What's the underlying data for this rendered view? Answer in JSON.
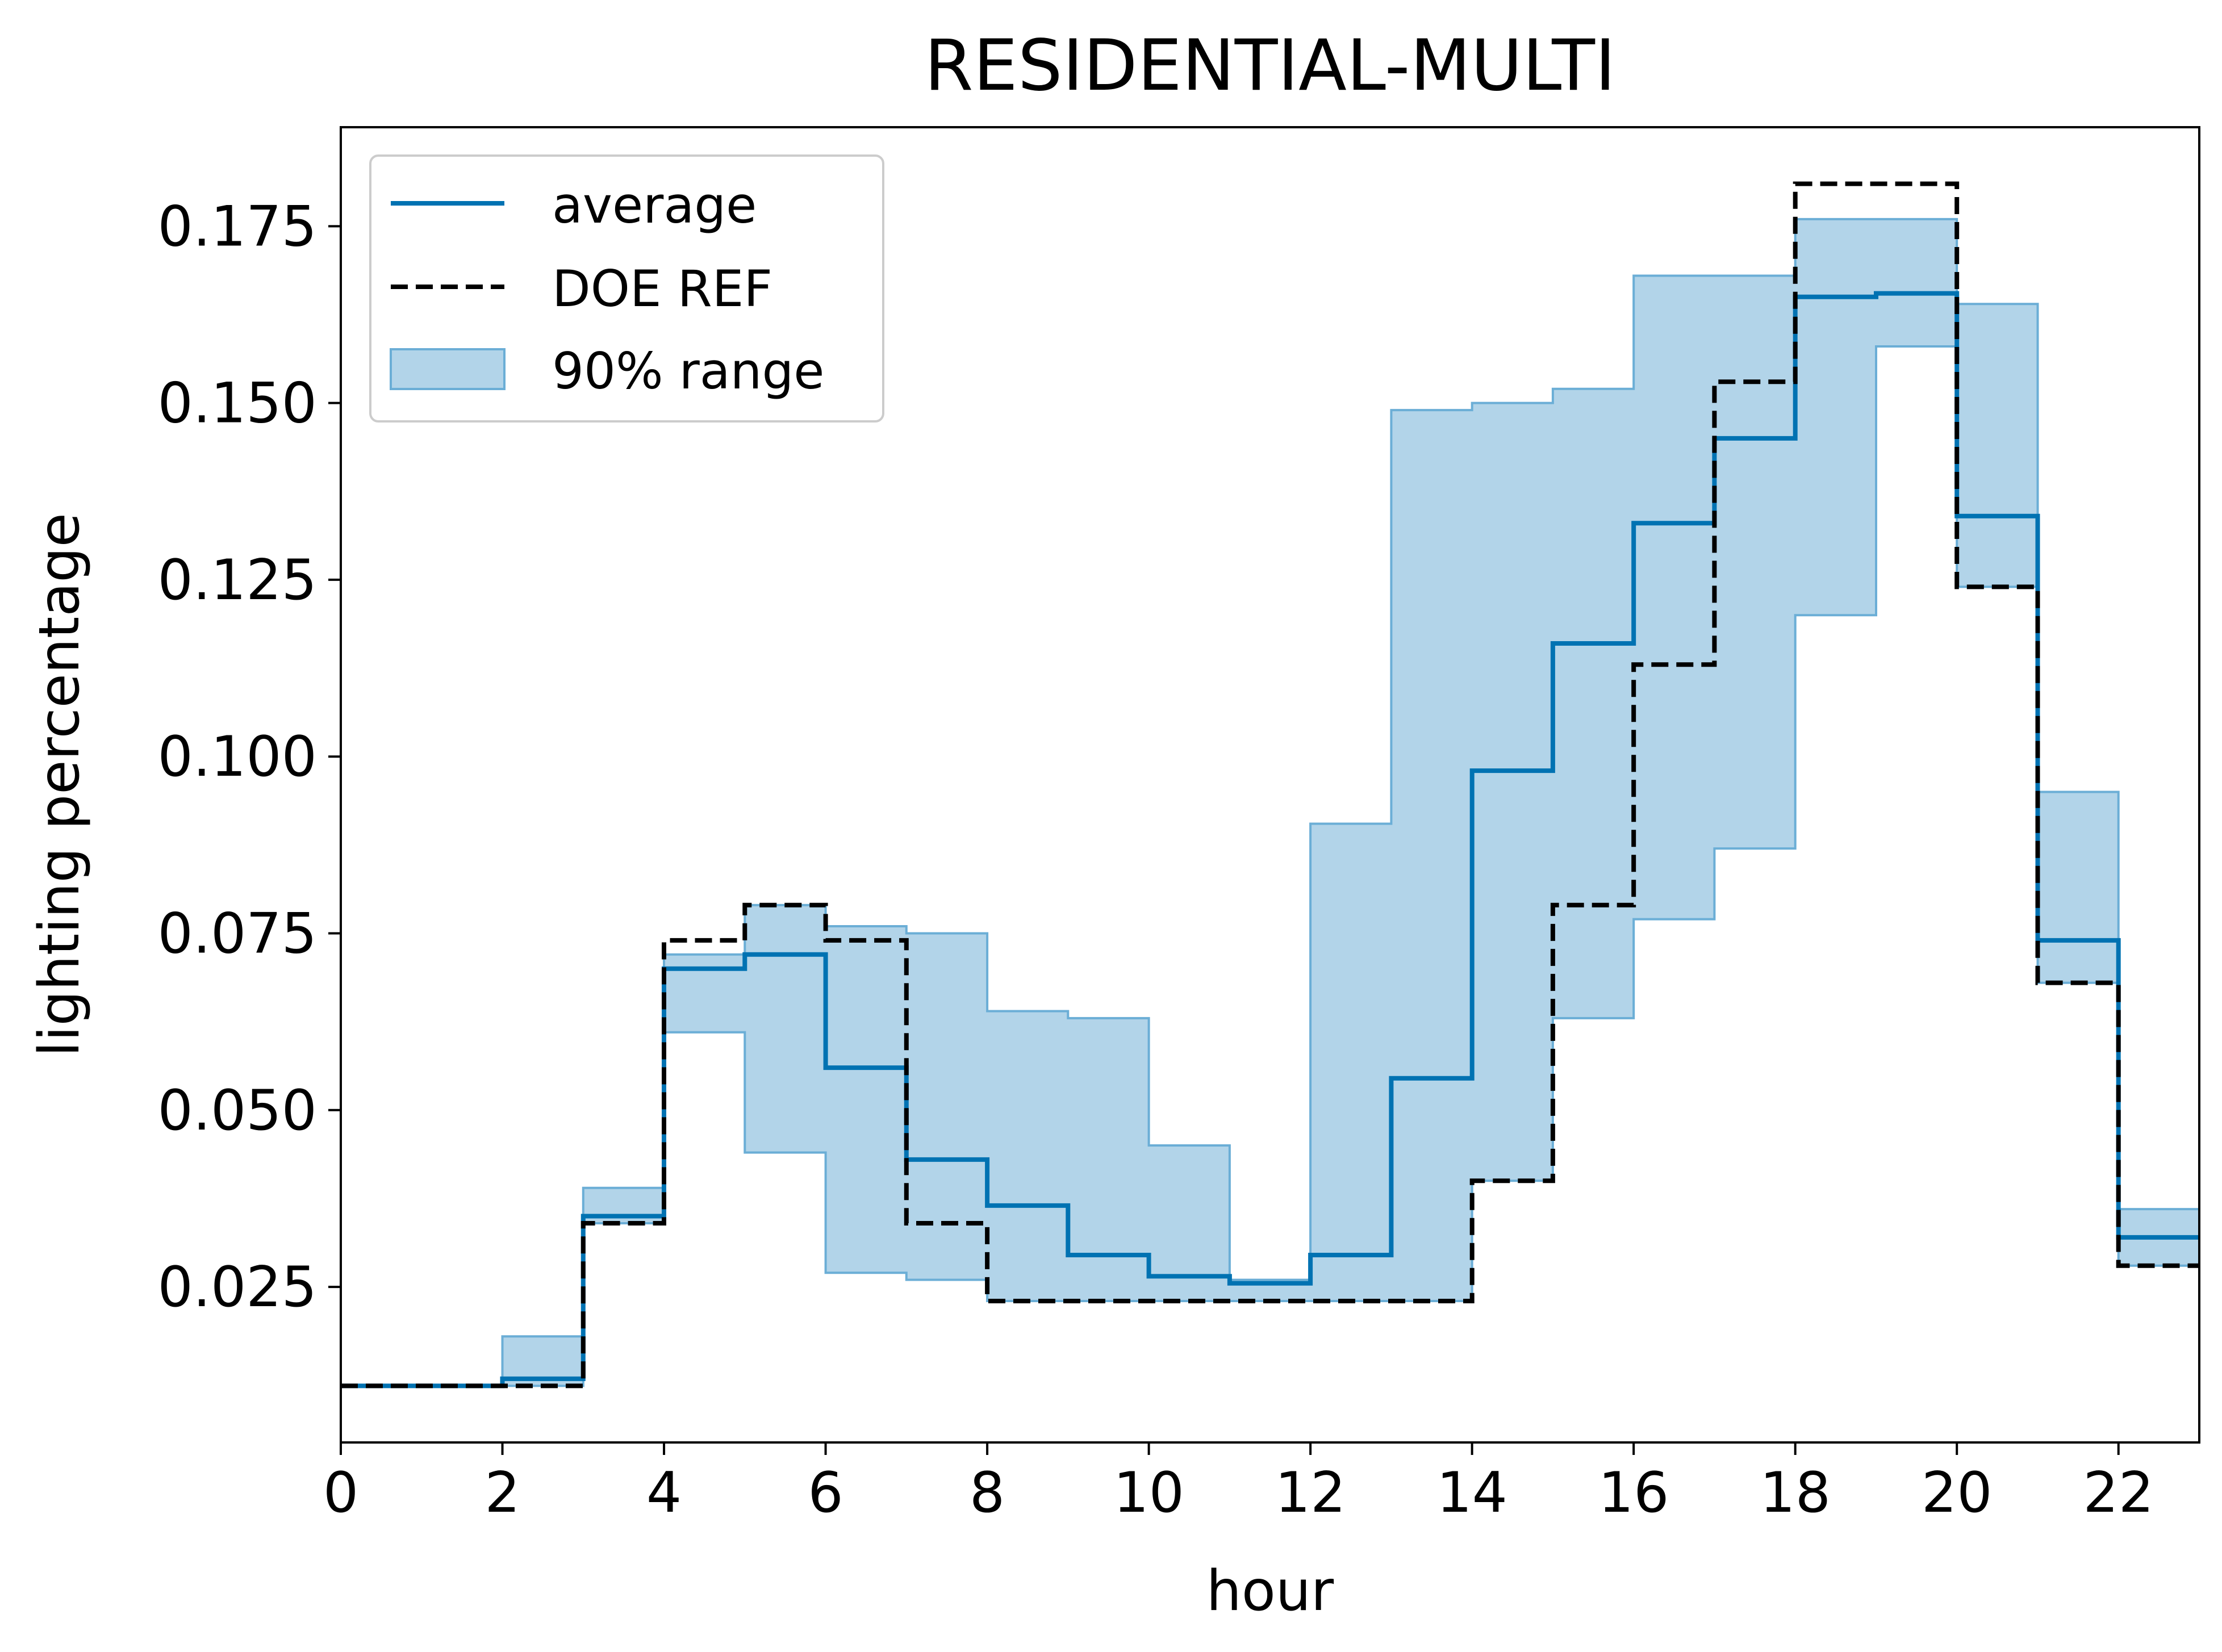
{
  "chart_data": {
    "type": "line",
    "title": "RESIDENTIAL-MULTI",
    "xlabel": "hour",
    "ylabel": "lighting percentage",
    "xlim": [
      0,
      23
    ],
    "ylim": [
      0.003,
      0.189
    ],
    "xticks": [
      0,
      2,
      4,
      6,
      8,
      10,
      12,
      14,
      16,
      18,
      20,
      22
    ],
    "xtick_labels": [
      "0",
      "2",
      "4",
      "6",
      "8",
      "10",
      "12",
      "14",
      "16",
      "18",
      "20",
      "22"
    ],
    "yticks": [
      0.025,
      0.05,
      0.075,
      0.1,
      0.125,
      0.15,
      0.175
    ],
    "ytick_labels": [
      "0.025",
      "0.050",
      "0.075",
      "0.100",
      "0.125",
      "0.150",
      "0.175"
    ],
    "grid": false,
    "legend_position": "upper-left",
    "hours": [
      0,
      1,
      2,
      3,
      4,
      5,
      6,
      7,
      8,
      9,
      10,
      11,
      12,
      13,
      14,
      15,
      16,
      17,
      18,
      19,
      20,
      21,
      22,
      23
    ],
    "series": [
      {
        "name": "average",
        "style": "solid-step",
        "color": "#0072B2",
        "values": [
          0.011,
          0.011,
          0.012,
          0.035,
          0.07,
          0.072,
          0.056,
          0.043,
          0.0365,
          0.0295,
          0.0265,
          0.0255,
          0.0295,
          0.0545,
          0.098,
          0.116,
          0.133,
          0.145,
          0.165,
          0.1655,
          0.134,
          0.074,
          0.032,
          0.032
        ]
      },
      {
        "name": "DOE REF",
        "style": "dashed-step",
        "color": "#000000",
        "values": [
          0.011,
          0.011,
          0.011,
          0.034,
          0.074,
          0.079,
          0.074,
          0.034,
          0.023,
          0.023,
          0.023,
          0.023,
          0.023,
          0.023,
          0.04,
          0.079,
          0.113,
          0.153,
          0.181,
          0.181,
          0.124,
          0.068,
          0.028,
          0.028
        ]
      }
    ],
    "range_band": {
      "name": "90% range",
      "color": "#9FC9E3",
      "edge_color": "#6BAED6",
      "lower": [
        0.011,
        0.011,
        0.011,
        0.034,
        0.061,
        0.044,
        0.027,
        0.026,
        0.023,
        0.023,
        0.023,
        0.023,
        0.023,
        0.023,
        0.04,
        0.063,
        0.077,
        0.087,
        0.12,
        0.158,
        0.124,
        0.068,
        0.028,
        0.028
      ],
      "upper": [
        0.011,
        0.011,
        0.018,
        0.039,
        0.072,
        0.079,
        0.076,
        0.075,
        0.064,
        0.063,
        0.045,
        0.026,
        0.0905,
        0.149,
        0.15,
        0.152,
        0.168,
        0.168,
        0.176,
        0.176,
        0.164,
        0.095,
        0.036,
        0.036
      ]
    }
  }
}
